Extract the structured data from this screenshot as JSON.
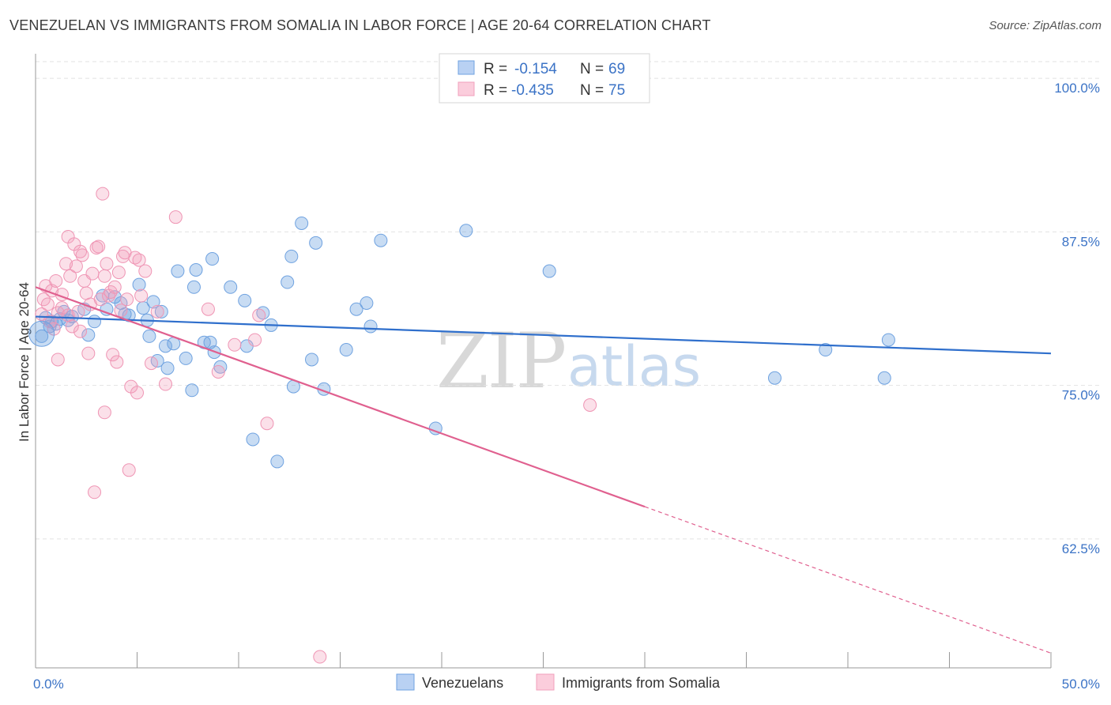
{
  "title": "VENEZUELAN VS IMMIGRANTS FROM SOMALIA IN LABOR FORCE | AGE 20-64 CORRELATION CHART",
  "source": "Source: ZipAtlas.com",
  "watermark": {
    "zip": "ZIP",
    "atlas": "atlas"
  },
  "chart_data": {
    "type": "scatter",
    "title": "VENEZUELAN VS IMMIGRANTS FROM SOMALIA IN LABOR FORCE | AGE 20-64 CORRELATION CHART",
    "xlabel": "",
    "ylabel": "In Labor Force | Age 20-64",
    "xlim": [
      0,
      50
    ],
    "ylim": [
      52,
      102
    ],
    "x_tick_labels": [
      "0.0%",
      "50.0%"
    ],
    "y_ticks": [
      62.5,
      75.0,
      87.5,
      100.0
    ],
    "y_tick_labels": [
      "62.5%",
      "75.0%",
      "87.5%",
      "100.0%"
    ],
    "grid": true,
    "legend_position": "top-center",
    "series": [
      {
        "name": "Venezuelans",
        "color": "#6fa2e0",
        "line_color": "#2f6fcc",
        "R": "-0.154",
        "N": "69",
        "trend": {
          "x0": 0,
          "y0": 80.6,
          "x1": 50,
          "y1": 77.6,
          "x_solid_end": 50
        },
        "points": [
          [
            0.3,
            79.0
          ],
          [
            0.5,
            80.5
          ],
          [
            0.7,
            79.8
          ],
          [
            0.8,
            80.2
          ],
          [
            1.0,
            80.0
          ],
          [
            1.2,
            80.4
          ],
          [
            1.4,
            81.0
          ],
          [
            1.6,
            80.3
          ],
          [
            1.8,
            80.6
          ],
          [
            2.4,
            81.2
          ],
          [
            2.6,
            79.1
          ],
          [
            2.9,
            80.2
          ],
          [
            3.3,
            82.3
          ],
          [
            3.5,
            81.2
          ],
          [
            3.9,
            82.2
          ],
          [
            4.2,
            81.7
          ],
          [
            4.4,
            80.8
          ],
          [
            4.6,
            80.7
          ],
          [
            5.1,
            83.2
          ],
          [
            5.3,
            81.3
          ],
          [
            5.5,
            80.3
          ],
          [
            5.6,
            79.0
          ],
          [
            5.8,
            81.8
          ],
          [
            6.0,
            77.0
          ],
          [
            6.2,
            81.0
          ],
          [
            6.4,
            78.2
          ],
          [
            6.5,
            76.4
          ],
          [
            6.8,
            78.4
          ],
          [
            7.0,
            84.3
          ],
          [
            7.4,
            77.2
          ],
          [
            7.7,
            74.6
          ],
          [
            7.8,
            83.0
          ],
          [
            7.9,
            84.4
          ],
          [
            8.3,
            78.5
          ],
          [
            8.6,
            78.5
          ],
          [
            8.7,
            85.3
          ],
          [
            8.8,
            77.7
          ],
          [
            9.1,
            76.5
          ],
          [
            9.6,
            83.0
          ],
          [
            10.3,
            81.9
          ],
          [
            10.4,
            78.2
          ],
          [
            10.7,
            70.6
          ],
          [
            11.2,
            80.9
          ],
          [
            11.6,
            79.9
          ],
          [
            11.9,
            68.8
          ],
          [
            12.4,
            83.4
          ],
          [
            12.6,
            85.5
          ],
          [
            12.7,
            74.9
          ],
          [
            13.1,
            88.2
          ],
          [
            13.6,
            77.1
          ],
          [
            13.8,
            86.6
          ],
          [
            14.2,
            74.7
          ],
          [
            15.3,
            77.9
          ],
          [
            15.8,
            81.2
          ],
          [
            16.3,
            81.7
          ],
          [
            16.5,
            79.8
          ],
          [
            17.0,
            86.8
          ],
          [
            19.7,
            71.5
          ],
          [
            21.2,
            87.6
          ],
          [
            25.3,
            84.3
          ],
          [
            36.4,
            75.6
          ],
          [
            38.9,
            77.9
          ],
          [
            41.8,
            75.6
          ],
          [
            42.0,
            78.7
          ]
        ]
      },
      {
        "name": "Immigrants from Somalia",
        "color": "#f2a0bc",
        "line_color": "#e0608f",
        "R": "-0.435",
        "N": "75",
        "trend": {
          "x0": 0,
          "y0": 83.0,
          "x1": 50,
          "y1": 53.2,
          "x_solid_end": 30
        },
        "points": [
          [
            0.3,
            80.8
          ],
          [
            0.4,
            82.0
          ],
          [
            0.5,
            83.1
          ],
          [
            0.6,
            81.6
          ],
          [
            0.7,
            80.2
          ],
          [
            0.8,
            82.7
          ],
          [
            0.9,
            79.6
          ],
          [
            1.0,
            83.5
          ],
          [
            1.1,
            80.9
          ],
          [
            1.1,
            77.1
          ],
          [
            1.3,
            82.4
          ],
          [
            1.3,
            81.3
          ],
          [
            1.5,
            84.9
          ],
          [
            1.6,
            87.1
          ],
          [
            1.6,
            80.7
          ],
          [
            1.7,
            83.9
          ],
          [
            1.8,
            79.8
          ],
          [
            1.9,
            86.5
          ],
          [
            2.0,
            84.7
          ],
          [
            2.1,
            81.0
          ],
          [
            2.2,
            79.4
          ],
          [
            2.2,
            85.9
          ],
          [
            2.3,
            85.6
          ],
          [
            2.4,
            83.5
          ],
          [
            2.5,
            82.5
          ],
          [
            2.6,
            77.6
          ],
          [
            2.7,
            81.6
          ],
          [
            2.8,
            84.1
          ],
          [
            2.9,
            66.3
          ],
          [
            3.0,
            86.2
          ],
          [
            3.1,
            86.3
          ],
          [
            3.2,
            82.0
          ],
          [
            3.3,
            90.6
          ],
          [
            3.4,
            83.9
          ],
          [
            3.4,
            72.8
          ],
          [
            3.5,
            84.9
          ],
          [
            3.6,
            82.3
          ],
          [
            3.7,
            82.6
          ],
          [
            3.8,
            77.5
          ],
          [
            3.9,
            83.0
          ],
          [
            4.0,
            76.9
          ],
          [
            4.1,
            84.2
          ],
          [
            4.2,
            81.1
          ],
          [
            4.3,
            85.5
          ],
          [
            4.4,
            85.8
          ],
          [
            4.5,
            82.0
          ],
          [
            4.6,
            68.1
          ],
          [
            4.7,
            74.9
          ],
          [
            4.9,
            85.4
          ],
          [
            5.0,
            74.4
          ],
          [
            5.1,
            85.2
          ],
          [
            5.2,
            82.3
          ],
          [
            5.4,
            84.3
          ],
          [
            5.7,
            76.8
          ],
          [
            6.0,
            81.0
          ],
          [
            6.4,
            75.1
          ],
          [
            6.9,
            88.7
          ],
          [
            8.5,
            81.2
          ],
          [
            9.0,
            76.1
          ],
          [
            9.8,
            78.3
          ],
          [
            10.8,
            78.7
          ],
          [
            11.0,
            80.7
          ],
          [
            11.4,
            71.9
          ],
          [
            14.0,
            52.9
          ],
          [
            27.3,
            73.4
          ]
        ]
      }
    ]
  },
  "legend": {
    "r_label": "R =",
    "n_label": "N =",
    "items": [
      {
        "name": "Venezuelans",
        "r": "-0.154",
        "n": "69",
        "fill": "#b9d1f3",
        "stroke": "#6fa2e0"
      },
      {
        "name": "Immigrants from Somalia",
        "r": "-0.435",
        "n": "75",
        "fill": "#fbcddc",
        "stroke": "#f2a0bc"
      }
    ]
  }
}
